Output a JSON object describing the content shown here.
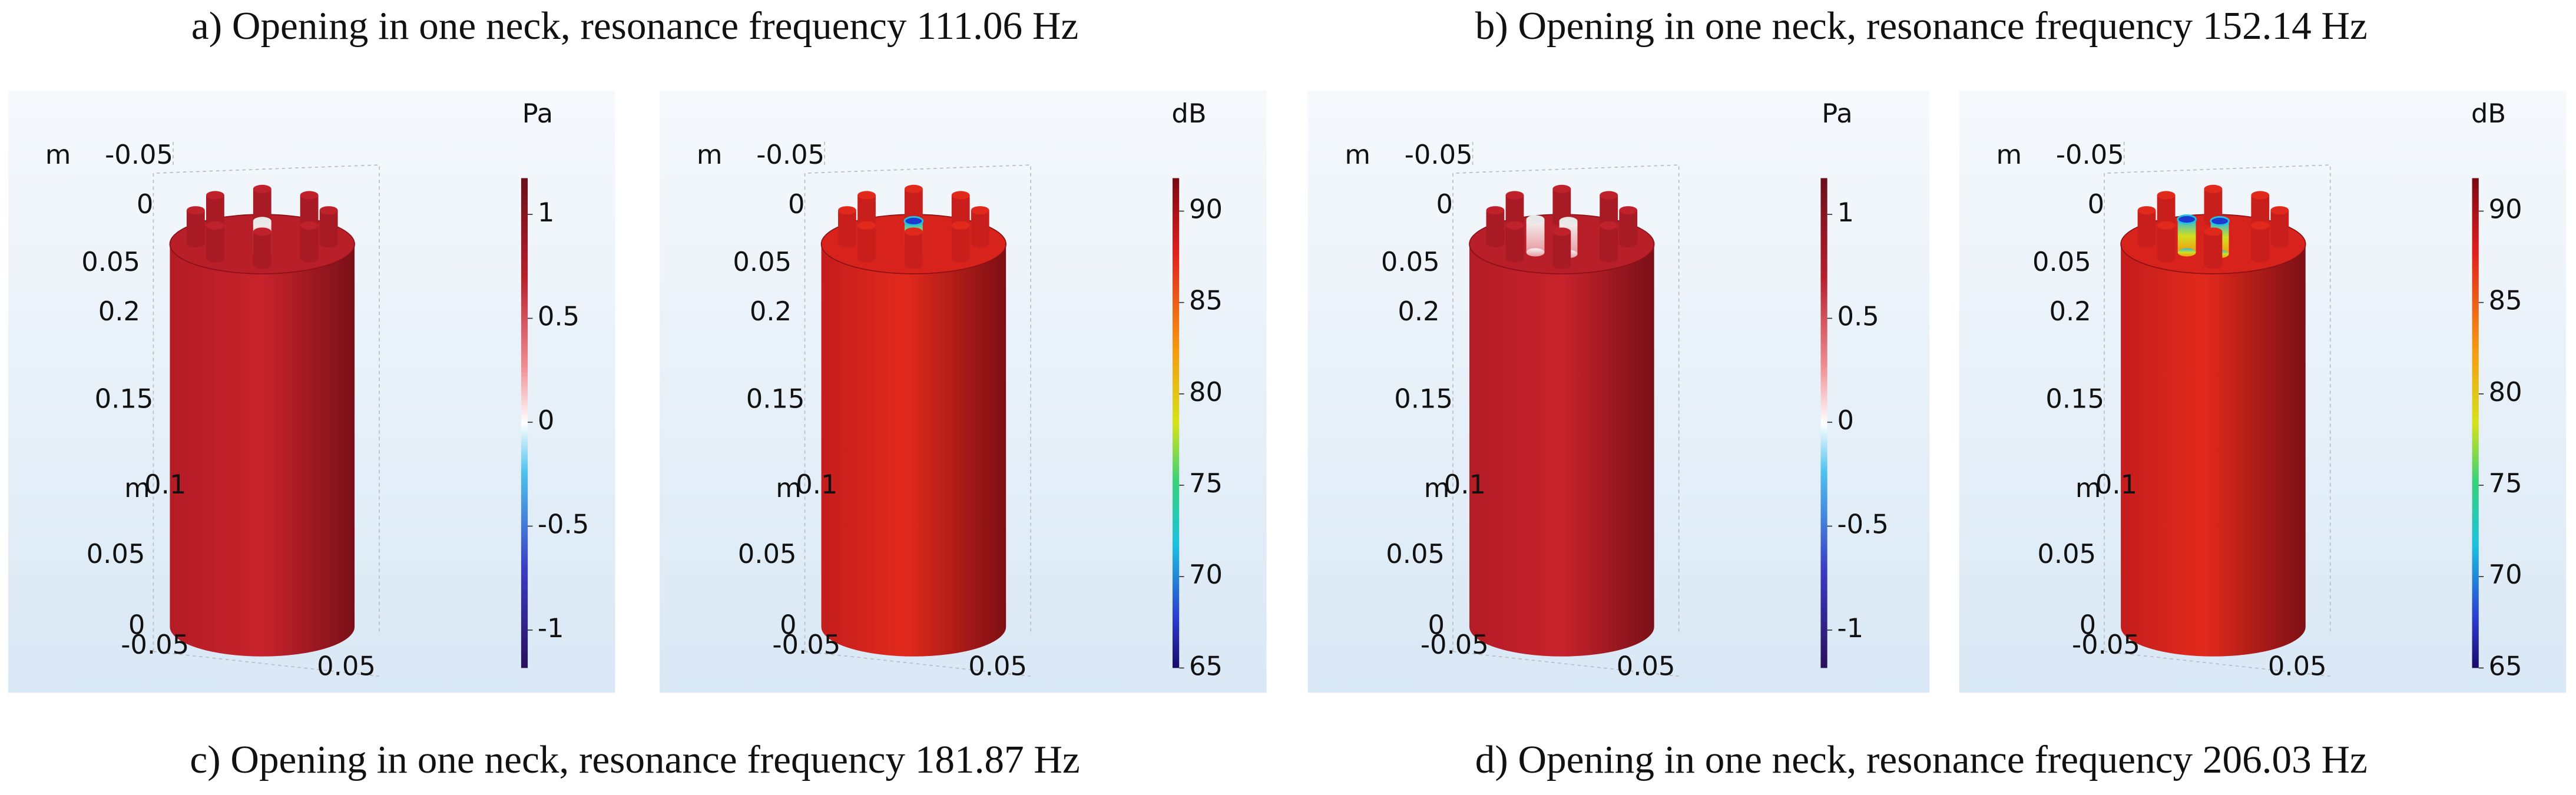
{
  "captions": [
    "a) Opening in one neck, resonance frequency 111.06 Hz",
    "b) Opening in one neck, resonance frequency 152.14 Hz",
    "c) Opening in one neck, resonance frequency 181.87 Hz",
    "d) Opening in one neck, resonance frequency 206.03 Hz"
  ],
  "panels": [
    {
      "plots": [
        {
          "unit": "Pa",
          "colorbar_ticks": [
            "1",
            "0.5",
            "0",
            "-0.5",
            "-1"
          ],
          "axis_labels": [
            "m",
            "-0.05",
            "0",
            "0.05",
            "0.2",
            "0.15",
            "m",
            "0.1",
            "0.05",
            "0",
            "-0.05",
            "0.05"
          ]
        },
        {
          "unit": "dB",
          "colorbar_ticks": [
            "90",
            "85",
            "80",
            "75",
            "70",
            "65"
          ],
          "axis_labels": [
            "m",
            "-0.05",
            "0",
            "0.05",
            "0.2",
            "0.15",
            "m",
            "0.1",
            "0.05",
            "0",
            "-0.05",
            "0.05"
          ]
        }
      ]
    },
    {
      "plots": [
        {
          "unit": "Pa",
          "colorbar_ticks": [
            "1",
            "0.5",
            "0",
            "-0.5",
            "-1"
          ],
          "axis_labels": [
            "m",
            "-0.05",
            "0",
            "0.05",
            "0.2",
            "0.15",
            "m",
            "0.1",
            "0.05",
            "0",
            "-0.05",
            "0.05"
          ]
        },
        {
          "unit": "dB",
          "colorbar_ticks": [
            "90",
            "85",
            "80",
            "75",
            "70",
            "65"
          ],
          "axis_labels": [
            "m",
            "-0.05",
            "0",
            "0.05",
            "0.2",
            "0.15",
            "m",
            "0.1",
            "0.05",
            "0",
            "-0.05",
            "0.05"
          ]
        }
      ]
    }
  ]
}
